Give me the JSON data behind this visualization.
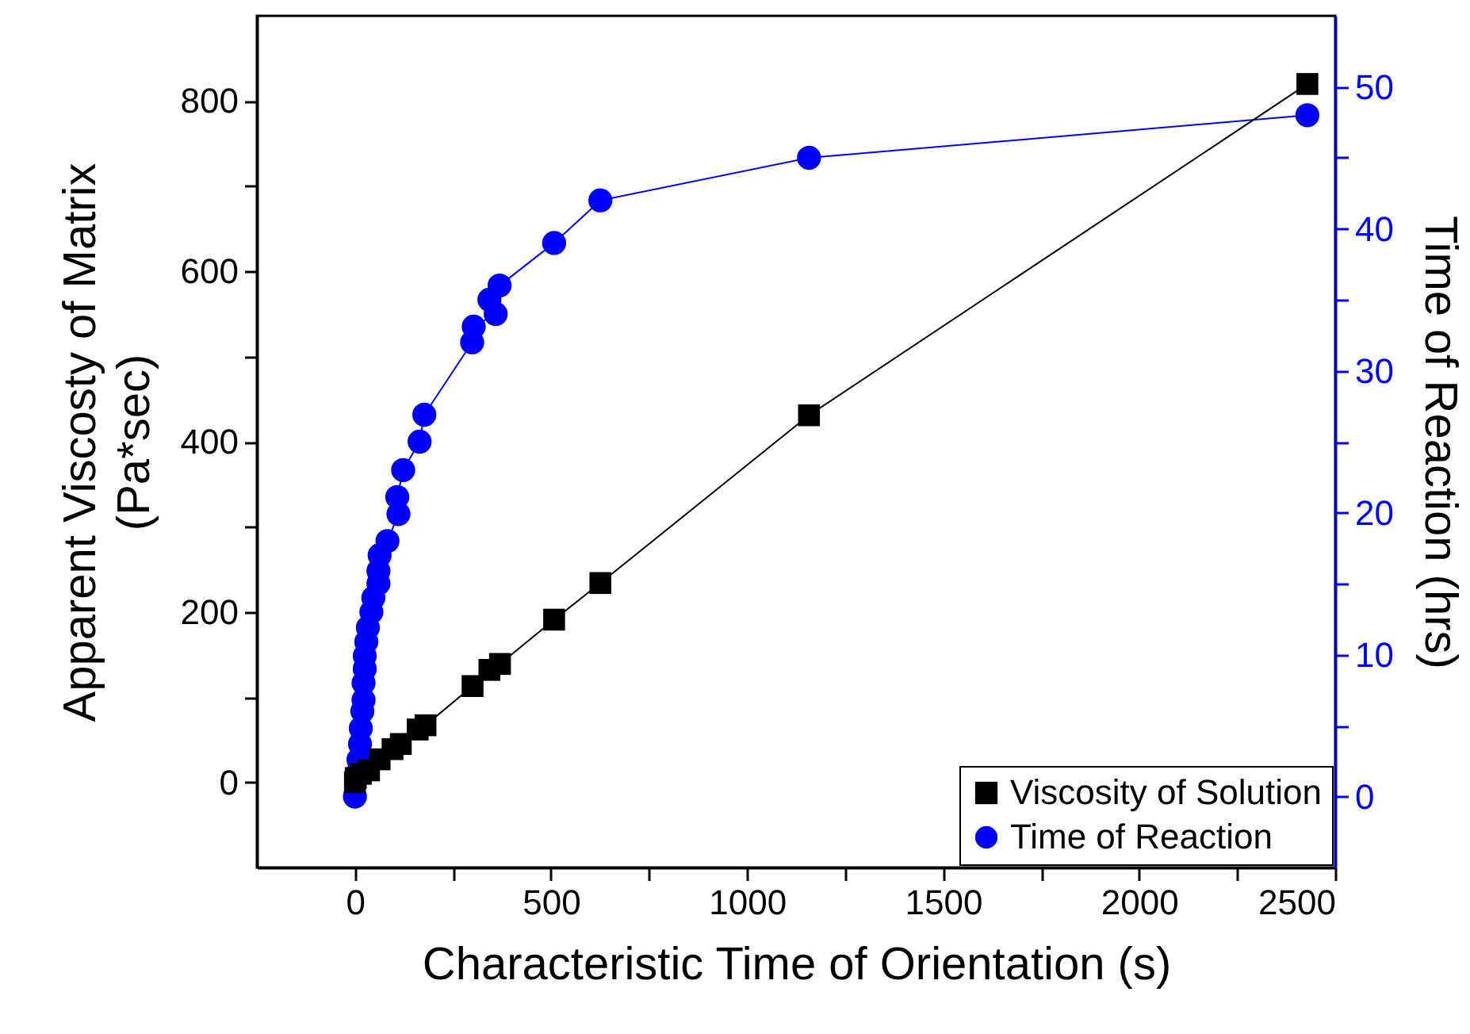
{
  "chart_data": {
    "type": "line",
    "xlabel": "Characteristic Time of Orientation (s)",
    "ylabel": "Apparent Viscosty of Matrix\n(Pa*sec)",
    "y2label": "Time of Reaction (hrs)",
    "xlim": [
      -250,
      2500
    ],
    "xticks": [
      0,
      {
        "value": 250,
        "label": null
      },
      500,
      {
        "value": 750,
        "label": null
      },
      1000,
      {
        "value": 1250,
        "label": null
      },
      1500,
      {
        "value": 1750,
        "label": null
      },
      2000,
      {
        "value": 2250,
        "label": null
      },
      2500
    ],
    "ylim": [
      -100,
      900
    ],
    "yticks": [
      0,
      {
        "value": 100,
        "label": null
      },
      200,
      {
        "value": 300,
        "label": null
      },
      400,
      {
        "value": 500,
        "label": null
      },
      600,
      {
        "value": 700,
        "label": null
      },
      800
    ],
    "y2lim": [
      -5,
      55
    ],
    "y2ticks": [
      0,
      {
        "value": 5,
        "label": null
      },
      10,
      {
        "value": 15,
        "label": null
      },
      20,
      {
        "value": 25,
        "label": null
      },
      30,
      {
        "value": 35,
        "label": null
      },
      40,
      {
        "value": 45,
        "label": null
      },
      50
    ],
    "legend": "bottom right",
    "grid": false,
    "line_style": "solid",
    "series": [
      {
        "name": "Viscosity of Solution",
        "color": "#000000",
        "marker": "square",
        "x": [
          0,
          2,
          15,
          36,
          63,
          96,
          117,
          160,
          180,
          300,
          343,
          370,
          508,
          626,
          1158,
          2429
        ],
        "values": [
          0,
          5,
          10,
          14,
          27,
          39,
          45,
          62,
          67,
          113,
          132,
          139,
          191,
          234,
          431,
          820
        ]
      },
      {
        "name": "Time of Reaction",
        "color": "#0000ff",
        "marker": "circle",
        "axis": "y2",
        "x": [
          0,
          5,
          9,
          13,
          15,
          19,
          22,
          22,
          25,
          25,
          29,
          33,
          42,
          47,
          60,
          60,
          63,
          83,
          111,
          108,
          123,
          165,
          177,
          299,
          303,
          359,
          343,
          369,
          508,
          626,
          1158,
          2429
        ],
        "values": [
          0,
          1.6,
          2.6,
          3.7,
          4.8,
          6,
          6.8,
          8,
          9,
          9.9,
          10.9,
          11.9,
          13,
          14,
          15,
          15.9,
          17,
          18,
          19.9,
          21.1,
          23,
          25,
          26.9,
          32,
          33.1,
          34,
          35,
          36,
          39,
          42,
          45,
          48
        ]
      }
    ]
  }
}
